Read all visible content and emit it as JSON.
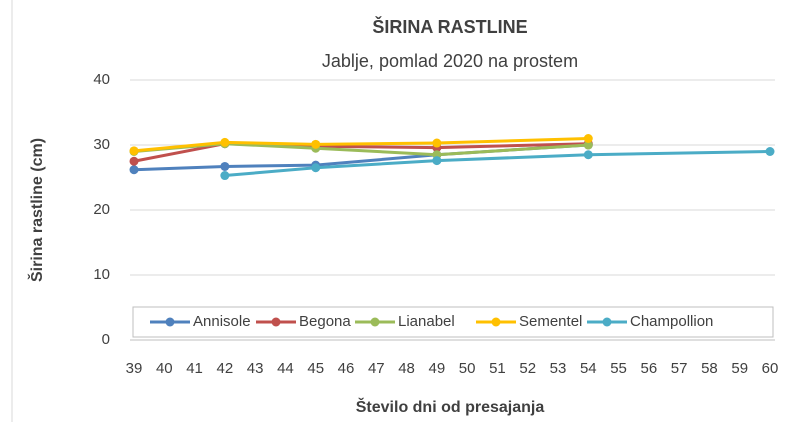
{
  "chart_data": {
    "type": "line",
    "title": "ŠIRINA RASTLINE",
    "subtitle": "Jablje, pomlad 2020 na prostem",
    "x_label": "Število dni od presajanja",
    "y_label": "Širina rastline (cm)",
    "x": [
      39,
      42,
      45,
      49,
      54,
      60
    ],
    "series": [
      {
        "name": "Annisole",
        "color": "#4f81bd",
        "values": [
          26.2,
          26.7,
          26.9,
          28.5,
          30,
          null
        ]
      },
      {
        "name": "Begona",
        "color": "#c0504d",
        "values": [
          27.5,
          30.2,
          29.8,
          29.6,
          30.2,
          null
        ]
      },
      {
        "name": "Lianabel",
        "color": "#9bbb59",
        "values": [
          29,
          30.2,
          29.5,
          28.5,
          30,
          null
        ]
      },
      {
        "name": "Sementel",
        "color": "#ffc000",
        "values": [
          29.1,
          30.4,
          30.1,
          30.3,
          31,
          null
        ]
      },
      {
        "name": "Champollion",
        "color": "#4bacc6",
        "values": [
          null,
          25.3,
          26.5,
          27.6,
          28.5,
          29
        ]
      }
    ],
    "xlim": [
      39,
      60
    ],
    "xticks": [
      39,
      40,
      41,
      42,
      43,
      44,
      45,
      46,
      47,
      48,
      49,
      50,
      51,
      52,
      53,
      54,
      55,
      56,
      57,
      58,
      59,
      60
    ],
    "ylim": [
      0,
      40
    ],
    "yticks": [
      0,
      10,
      20,
      30,
      40
    ],
    "grid": true,
    "legend": "bottom"
  }
}
